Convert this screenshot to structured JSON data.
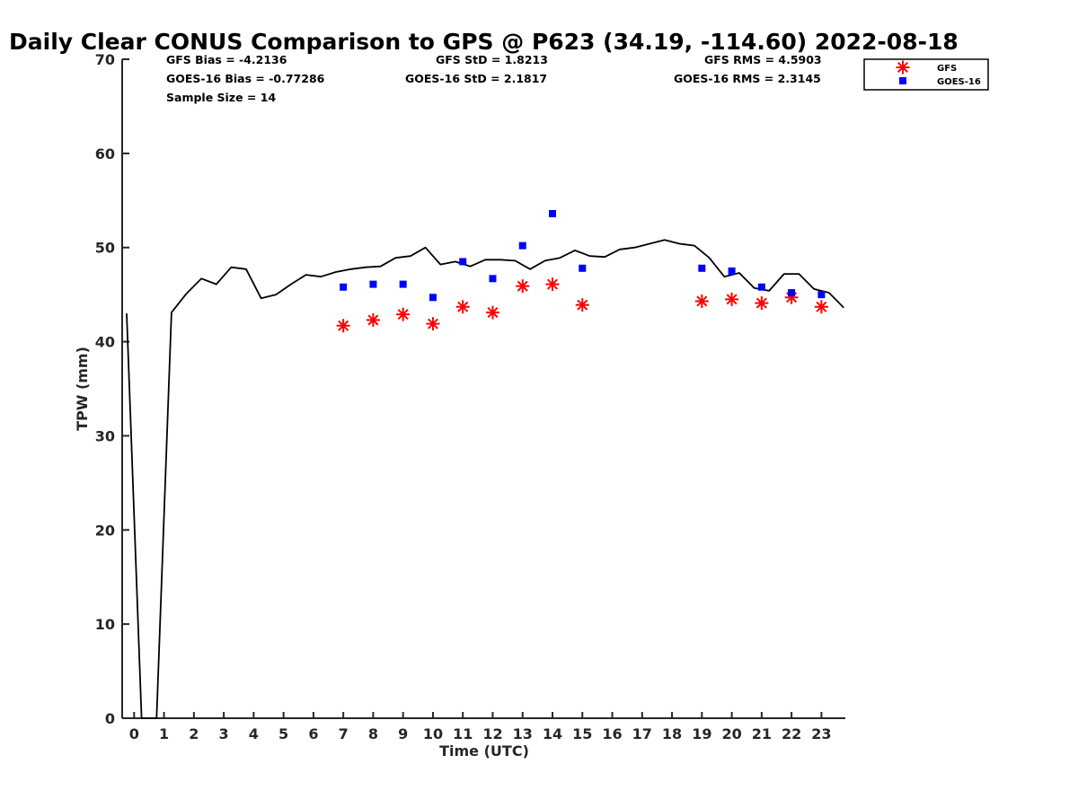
{
  "chart_data": {
    "type": "scatter",
    "title": "Daily Clear CONUS Comparison to GPS @ P623 (34.19, -114.60) 2022-08-18",
    "xlabel": "Time (UTC)",
    "ylabel": "TPW (mm)",
    "xlim": [
      -0.4,
      23.8
    ],
    "ylim": [
      0,
      70
    ],
    "x_ticks": [
      0,
      1,
      2,
      3,
      4,
      5,
      6,
      7,
      8,
      9,
      10,
      11,
      12,
      13,
      14,
      15,
      16,
      17,
      18,
      19,
      20,
      21,
      22,
      23
    ],
    "y_ticks": [
      0,
      10,
      20,
      30,
      40,
      50,
      60,
      70
    ],
    "grid": false,
    "legend_position": "top-right",
    "stats": {
      "gfs_bias": "GFS Bias = -4.2136",
      "goes_bias": "GOES-16 Bias = -0.77286",
      "sample_size": "Sample Size = 14",
      "gfs_std": "GFS StD = 1.8213",
      "goes_std": "GOES-16 StD = 2.1817",
      "gfs_rms": "GFS RMS = 4.5903",
      "goes_rms": "GOES-16 RMS = 2.3145"
    },
    "gps_line": {
      "color": "#000000",
      "x": [
        -0.25,
        0.25,
        0.5,
        0.75,
        1.25,
        1.75,
        2.25,
        2.75,
        3.25,
        3.75,
        4.25,
        4.75,
        5.25,
        5.75,
        6.25,
        6.75,
        7.25,
        7.75,
        8.25,
        8.75,
        9.25,
        9.75,
        10.25,
        10.75,
        11.25,
        11.75,
        12.25,
        12.75,
        13.25,
        13.75,
        14.25,
        14.75,
        15.25,
        15.75,
        16.25,
        16.75,
        17.25,
        17.75,
        18.25,
        18.75,
        19.25,
        19.75,
        20.25,
        20.75,
        21.25,
        21.75,
        22.25,
        22.75,
        23.25,
        23.75
      ],
      "y": [
        43.0,
        0,
        0,
        0,
        43.1,
        45.1,
        46.7,
        46.1,
        47.9,
        47.7,
        44.6,
        45.0,
        46.1,
        47.1,
        46.9,
        47.4,
        47.7,
        47.9,
        48.0,
        48.9,
        49.1,
        50.0,
        48.2,
        48.5,
        48.0,
        48.7,
        48.7,
        48.6,
        47.7,
        48.6,
        48.9,
        49.7,
        49.1,
        49.0,
        49.8,
        50.0,
        50.4,
        50.8,
        50.4,
        50.2,
        48.9,
        46.9,
        47.3,
        45.7,
        45.4,
        47.2,
        47.2,
        45.6,
        45.2,
        43.6
      ]
    },
    "series": [
      {
        "name": "GFS",
        "marker": "asterisk",
        "color": "#ff0000",
        "x": [
          7,
          8,
          9,
          10,
          11,
          12,
          13,
          14,
          15,
          19,
          20,
          21,
          22,
          23
        ],
        "y": [
          41.7,
          42.3,
          42.9,
          41.9,
          43.7,
          43.1,
          45.9,
          46.1,
          43.9,
          44.3,
          44.5,
          44.1,
          44.7,
          43.7
        ]
      },
      {
        "name": "GOES-16",
        "marker": "square",
        "color": "#0000ff",
        "x": [
          7,
          8,
          9,
          10,
          11,
          12,
          13,
          14,
          15,
          19,
          20,
          21,
          22,
          23
        ],
        "y": [
          45.8,
          46.1,
          46.1,
          44.7,
          48.5,
          46.7,
          50.2,
          53.6,
          47.8,
          47.8,
          47.5,
          45.8,
          45.2,
          45.0
        ]
      }
    ]
  }
}
